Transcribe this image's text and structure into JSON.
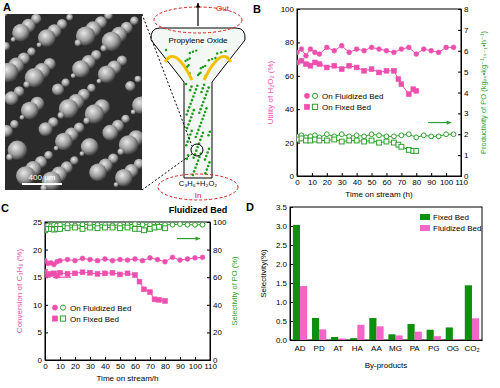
{
  "diagram": {
    "label": "A",
    "scale_bar": "400 μm",
    "outlet": "Out",
    "product": "Propylene Oxide",
    "feed": "C₃H₆+H₂O₂",
    "inlet": "In",
    "caption": "Fluidized Bed"
  },
  "chart_data": [
    {
      "type": "line",
      "title": "B",
      "xlabel": "Time on stream (h)",
      "ylabel": "Utility of H₂O₂ (%)",
      "y2label": "Productivity of PO (kgₚₒ•kg⁻¹ₜₛ₋₁•h⁻¹)",
      "xlim": [
        0,
        110
      ],
      "xticks": [
        0,
        10,
        20,
        30,
        40,
        50,
        60,
        70,
        80,
        90,
        100,
        110
      ],
      "ylim": [
        0,
        100
      ],
      "yticks": [
        0,
        20,
        40,
        60,
        80,
        100
      ],
      "y2lim": [
        0,
        8
      ],
      "y2ticks": [
        0,
        1,
        2,
        3,
        4,
        5,
        6,
        7,
        8
      ],
      "legend": "left",
      "series": [
        {
          "name": "On Fluidized Bed",
          "color": "#ee4fae",
          "marker": "circle",
          "line_style": "solid",
          "x": [
            0,
            3,
            6,
            9,
            12,
            15,
            20,
            25,
            30,
            35,
            40,
            45,
            50,
            55,
            60,
            65,
            70,
            75,
            80,
            85,
            90,
            95,
            100,
            105
          ],
          "values": [
            74,
            76,
            72,
            76,
            74,
            73,
            77,
            75,
            78,
            74,
            76,
            75,
            77,
            76,
            75,
            74,
            76,
            77,
            73,
            76,
            75,
            74,
            77,
            77
          ]
        },
        {
          "name": "On Fixed Bed",
          "color": "#ee4fae",
          "marker": "square",
          "line_style": "solid",
          "x": [
            0,
            3,
            6,
            9,
            12,
            15,
            20,
            25,
            30,
            35,
            40,
            45,
            50,
            55,
            60,
            65,
            68,
            70,
            75,
            78,
            80
          ],
          "values": [
            68,
            69,
            67,
            66,
            68,
            67,
            65,
            66,
            64,
            66,
            65,
            63,
            64,
            62,
            63,
            63,
            58,
            55,
            49,
            52,
            51
          ]
        },
        {
          "color": "#2ca02c",
          "marker": "circle-open",
          "line_style": "solid",
          "axis": "y2",
          "x": [
            0,
            3,
            6,
            9,
            12,
            15,
            20,
            25,
            30,
            35,
            40,
            45,
            50,
            55,
            60,
            65,
            70,
            75,
            80,
            85,
            90,
            95,
            100,
            105
          ],
          "values": [
            1.9,
            1.95,
            1.85,
            1.9,
            1.95,
            1.85,
            2.0,
            1.9,
            2.0,
            1.9,
            1.95,
            1.9,
            2.0,
            1.95,
            1.9,
            1.9,
            1.95,
            2.0,
            1.85,
            1.95,
            1.9,
            1.9,
            2.0,
            2.0
          ]
        },
        {
          "color": "#2ca02c",
          "marker": "square-open",
          "line_style": "solid",
          "axis": "y2",
          "x": [
            0,
            3,
            6,
            9,
            12,
            15,
            20,
            25,
            30,
            35,
            40,
            45,
            50,
            55,
            60,
            65,
            68,
            70,
            75,
            78,
            80
          ],
          "values": [
            1.75,
            1.8,
            1.7,
            1.7,
            1.75,
            1.7,
            1.7,
            1.75,
            1.65,
            1.7,
            1.7,
            1.65,
            1.7,
            1.6,
            1.65,
            1.6,
            1.5,
            1.4,
            1.25,
            1.2,
            1.2
          ]
        }
      ]
    },
    {
      "type": "line",
      "title": "C",
      "xlabel": "Time on stream/h",
      "ylabel": "Conversion of C₃H₆ (%)",
      "y2label": "Selectivity of PO (%)",
      "xlim": [
        0,
        110
      ],
      "xticks": [
        0,
        10,
        20,
        30,
        40,
        50,
        60,
        70,
        80,
        90,
        100,
        110
      ],
      "ylim": [
        0,
        25
      ],
      "yticks": [
        0,
        5,
        10,
        15,
        20,
        25
      ],
      "y2lim": [
        0,
        100
      ],
      "y2ticks": [
        0,
        20,
        40,
        60,
        80,
        100
      ],
      "legend": "lower-left",
      "series": [
        {
          "name": "On Fluidized Bed",
          "color": "#ee4fae",
          "marker": "circle",
          "line_style": "solid",
          "x": [
            0,
            2,
            4,
            6,
            8,
            10,
            15,
            20,
            25,
            30,
            35,
            40,
            45,
            50,
            55,
            60,
            65,
            70,
            75,
            80,
            85,
            90,
            95,
            100,
            105
          ],
          "values": [
            18.0,
            17.5,
            17.6,
            17.3,
            17.8,
            18.0,
            18.2,
            18.0,
            18.4,
            18.2,
            18.0,
            18.3,
            18.0,
            18.2,
            18.1,
            18.3,
            18.0,
            18.5,
            18.2,
            17.8,
            18.6,
            18.1,
            18.3,
            18.5,
            18.6
          ]
        },
        {
          "name": "On Fixed Bed",
          "color": "#ee4fae",
          "marker": "square",
          "line_style": "solid",
          "x": [
            0,
            2,
            4,
            6,
            8,
            10,
            15,
            20,
            25,
            30,
            35,
            40,
            45,
            50,
            55,
            60,
            63,
            66,
            70,
            73,
            76,
            80
          ],
          "values": [
            16.0,
            15.4,
            15.6,
            15.7,
            15.3,
            15.8,
            15.6,
            15.7,
            15.9,
            15.8,
            15.6,
            15.7,
            15.8,
            15.5,
            15.7,
            15.4,
            14.2,
            12.8,
            12.3,
            11.0,
            10.9,
            10.7
          ]
        },
        {
          "color": "#2ca02c",
          "marker": "circle-open",
          "line_style": "solid",
          "axis": "y2",
          "x": [
            0,
            2,
            4,
            6,
            8,
            10,
            15,
            20,
            25,
            30,
            35,
            40,
            45,
            50,
            55,
            60,
            65,
            70,
            75,
            80,
            85,
            90,
            95,
            100,
            105
          ],
          "values": [
            97,
            97.5,
            97,
            98,
            97.5,
            98,
            98,
            97.5,
            98,
            98.5,
            98,
            98,
            97.5,
            98,
            98,
            98.5,
            98,
            98,
            98,
            98,
            98,
            98.5,
            98,
            98,
            98
          ]
        },
        {
          "color": "#2ca02c",
          "marker": "square-open",
          "line_style": "solid",
          "axis": "y2",
          "x": [
            0,
            2,
            4,
            6,
            8,
            10,
            15,
            20,
            25,
            30,
            35,
            40,
            45,
            50,
            55,
            60,
            63,
            66,
            70,
            73,
            76,
            80
          ],
          "values": [
            94,
            95,
            95,
            94.5,
            95,
            95,
            95.5,
            96,
            95,
            96,
            95.5,
            96,
            96,
            95.5,
            96,
            95,
            95,
            94,
            95,
            96,
            96.5,
            95.5
          ]
        }
      ]
    },
    {
      "type": "bar",
      "title": "D",
      "xlabel": "By-products",
      "ylabel": "Selectivity(%)",
      "categories": [
        "AD",
        "PD",
        "AT",
        "HA",
        "AA",
        "MG",
        "PA",
        "PG",
        "OG",
        "CO₂"
      ],
      "ylim": [
        0,
        3.5
      ],
      "yticks": [
        {
          "value": 0,
          "label": "0.0"
        },
        0.5,
        {
          "value": 1,
          "label": "1.0"
        },
        1.5,
        {
          "value": 2,
          "label": "2.0"
        },
        2.5,
        {
          "value": 3,
          "label": "3.0"
        },
        3.5
      ],
      "legend": "upper-right",
      "series": [
        {
          "name": "Fixed Bed",
          "color": "#0e8f0e",
          "values": [
            3.03,
            0.58,
            0.08,
            0.05,
            0.58,
            0.15,
            0.42,
            0.27,
            0.33,
            1.44
          ]
        },
        {
          "name": "Fluidized Bed",
          "color": "#f266c8",
          "values": [
            1.42,
            0.28,
            0.04,
            0.4,
            0.36,
            0.12,
            0.22,
            0.1,
            0.02,
            0.57
          ]
        }
      ]
    }
  ]
}
